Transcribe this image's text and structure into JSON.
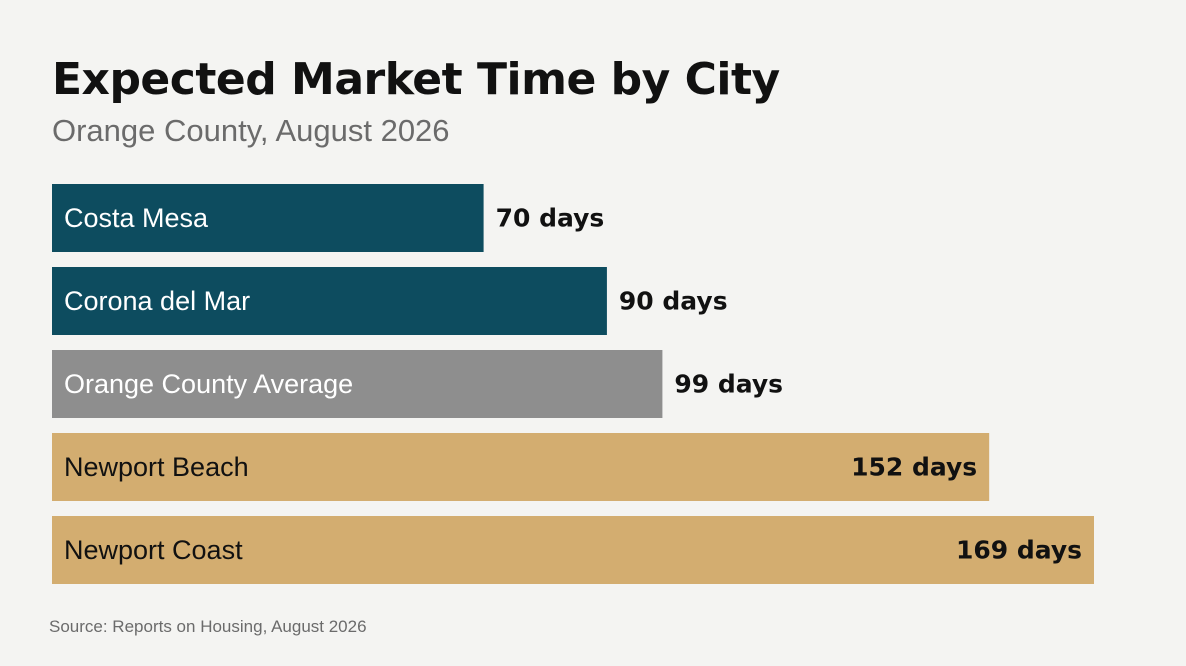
{
  "header": {
    "title": "Expected Market Time by City",
    "subtitle": "Orange County, August 2026"
  },
  "footer": {
    "source": "Source: Reports on Housing, August 2026"
  },
  "colors": {
    "background": "#f4f4f2",
    "teal": "#0d4c5f",
    "gray": "#8e8e8e",
    "gold": "#d3ad70",
    "label_light": "#ffffff",
    "label_dark": "#111111"
  },
  "chart_data": {
    "type": "bar",
    "orientation": "horizontal",
    "title": "Expected Market Time by City",
    "subtitle": "Orange County, August 2026",
    "xlabel": "",
    "ylabel": "",
    "xlim": [
      0,
      169
    ],
    "grid": false,
    "legend": "none",
    "unit": "days",
    "categories": [
      "Costa Mesa",
      "Corona del Mar",
      "Orange County Average",
      "Newport Beach",
      "Newport Coast"
    ],
    "values": [
      70,
      90,
      99,
      152,
      169
    ],
    "value_labels": [
      "70 days",
      "90 days",
      "99 days",
      "152 days",
      "169 days"
    ],
    "bar_colors": [
      "#0d4c5f",
      "#0d4c5f",
      "#8e8e8e",
      "#d3ad70",
      "#d3ad70"
    ],
    "value_label_position": [
      "outside",
      "outside",
      "outside",
      "inside",
      "inside"
    ]
  }
}
